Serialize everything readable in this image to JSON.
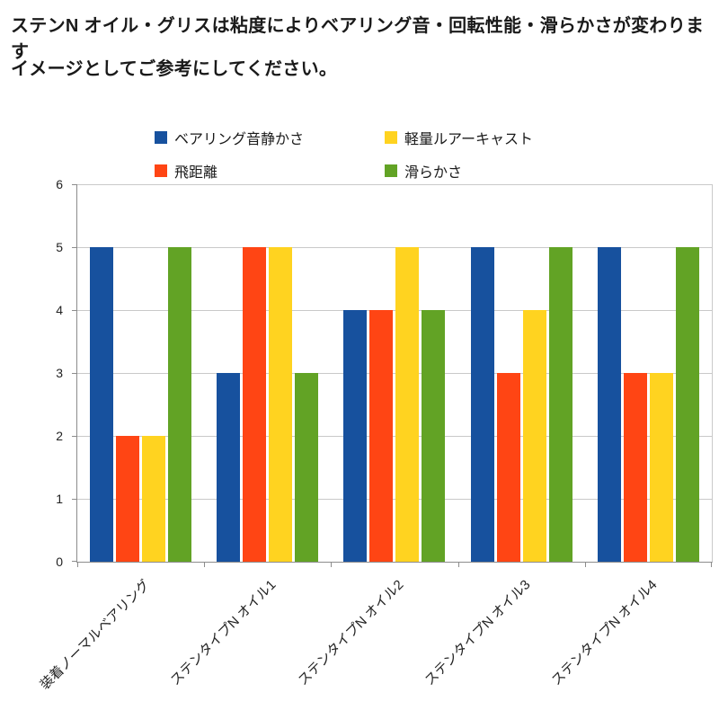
{
  "header": {
    "line1": "ステンN  オイル・グリスは粘度によりベアリング音・回転性能・滑らかさが変わります",
    "line2": "イメージとしてご参考にしてください。"
  },
  "chart_data": {
    "type": "bar",
    "title": "",
    "categories": [
      "装着ノーマルベアリング",
      "ステンタイプN オイル1",
      "ステンタイプN オイル2",
      "ステンタイプN オイル3",
      "ステンタイプN オイル4"
    ],
    "series": [
      {
        "key": "bearing-quietness",
        "name": "ベアリング音静かさ",
        "color": "#17519E",
        "values": [
          5,
          3,
          4,
          5,
          5
        ]
      },
      {
        "key": "casting-distance",
        "name": "飛距離",
        "color": "#FF4514",
        "values": [
          2,
          5,
          4,
          3,
          3
        ]
      },
      {
        "key": "light-lure-cast",
        "name": "軽量ルアーキャスト",
        "color": "#FFD320",
        "values": [
          2,
          5,
          5,
          4,
          3
        ]
      },
      {
        "key": "smoothness",
        "name": "滑らかさ",
        "color": "#62A325",
        "values": [
          5,
          3,
          4,
          5,
          5
        ]
      }
    ],
    "legend_order": [
      0,
      2,
      1,
      3
    ],
    "legend_position": "top",
    "ylim": [
      0,
      6
    ],
    "yticks": [
      0,
      1,
      2,
      3,
      4,
      5,
      6
    ],
    "grid": true
  }
}
